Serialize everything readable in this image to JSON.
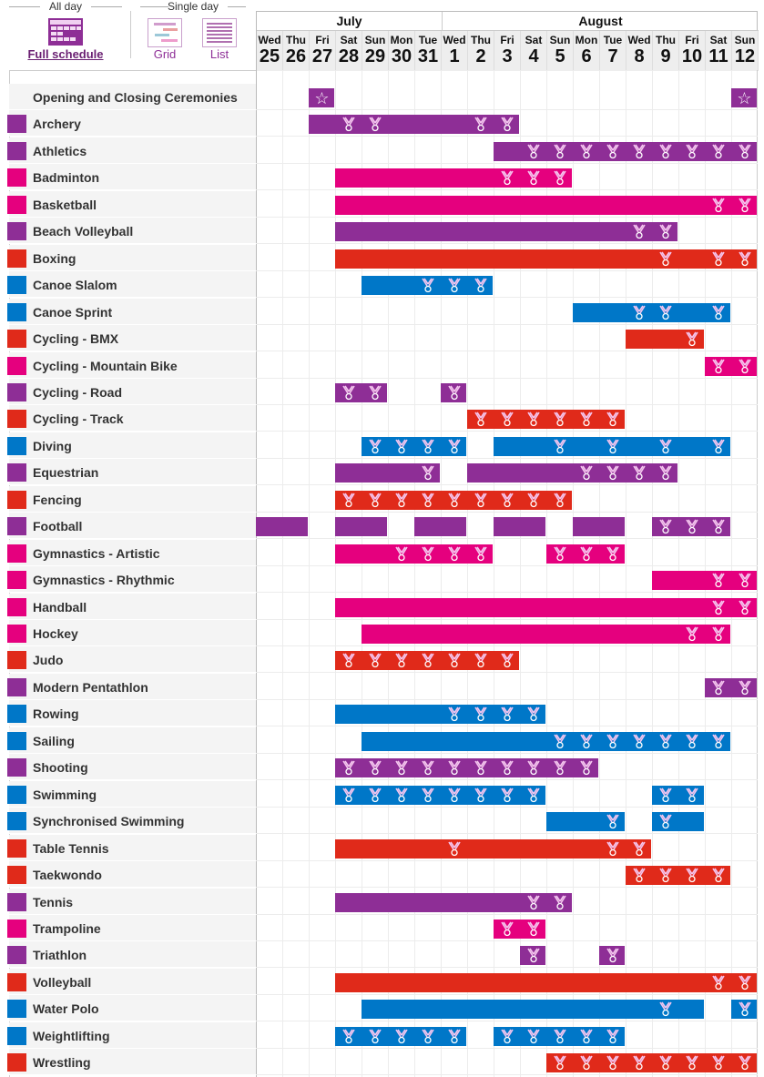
{
  "views": {
    "all_day": "All day",
    "single_day": "Single day",
    "full_schedule": "Full schedule",
    "grid": "Grid",
    "list": "List"
  },
  "months": [
    {
      "name": "July",
      "span": 7
    },
    {
      "name": "August",
      "span": 12
    }
  ],
  "days": [
    {
      "dow": "Wed",
      "num": "25",
      "key": "Jul 25"
    },
    {
      "dow": "Thu",
      "num": "26",
      "key": "Jul 26"
    },
    {
      "dow": "Fri",
      "num": "27",
      "key": "Jul 27"
    },
    {
      "dow": "Sat",
      "num": "28",
      "key": "Jul 28"
    },
    {
      "dow": "Sun",
      "num": "29",
      "key": "Jul 29"
    },
    {
      "dow": "Mon",
      "num": "30",
      "key": "Jul 30"
    },
    {
      "dow": "Tue",
      "num": "31",
      "key": "Jul 31"
    },
    {
      "dow": "Wed",
      "num": "1",
      "key": "Aug 1"
    },
    {
      "dow": "Thu",
      "num": "2",
      "key": "Aug 2"
    },
    {
      "dow": "Fri",
      "num": "3",
      "key": "Aug 3"
    },
    {
      "dow": "Sat",
      "num": "4",
      "key": "Aug 4"
    },
    {
      "dow": "Sun",
      "num": "5",
      "key": "Aug 5"
    },
    {
      "dow": "Mon",
      "num": "6",
      "key": "Aug 6"
    },
    {
      "dow": "Tue",
      "num": "7",
      "key": "Aug 7"
    },
    {
      "dow": "Wed",
      "num": "8",
      "key": "Aug 8"
    },
    {
      "dow": "Thu",
      "num": "9",
      "key": "Aug 9"
    },
    {
      "dow": "Fri",
      "num": "10",
      "key": "Aug 10"
    },
    {
      "dow": "Sat",
      "num": "11",
      "key": "Aug 11"
    },
    {
      "dow": "Sun",
      "num": "12",
      "key": "Aug 12"
    }
  ],
  "colors": {
    "purple": "#8e2e96",
    "pink": "#e5007e",
    "red": "#e02a1a",
    "blue": "#0077c8"
  },
  "icons": {
    "medal": "medal-icon",
    "ceremony": "star-icon"
  },
  "sports": [
    {
      "name": "Opening and Closing Ceremonies",
      "color": "purple",
      "ceremony": true,
      "segs": [
        [
          "Jul 27",
          "Jul 27",
          [
            "Jul 27"
          ]
        ],
        [
          "Aug 12",
          "Aug 12",
          [
            "Aug 12"
          ]
        ]
      ]
    },
    {
      "name": "Archery",
      "color": "purple",
      "segs": [
        [
          "Jul 27",
          "Aug 3",
          [
            "Jul 28",
            "Jul 29",
            "Aug 2",
            "Aug 3"
          ]
        ]
      ]
    },
    {
      "name": "Athletics",
      "color": "purple",
      "segs": [
        [
          "Aug 3",
          "Aug 12",
          [
            "Aug 4",
            "Aug 5",
            "Aug 6",
            "Aug 7",
            "Aug 8",
            "Aug 9",
            "Aug 10",
            "Aug 11",
            "Aug 12"
          ]
        ]
      ]
    },
    {
      "name": "Badminton",
      "color": "pink",
      "segs": [
        [
          "Jul 28",
          "Aug 5",
          [
            "Aug 3",
            "Aug 4",
            "Aug 5"
          ]
        ]
      ]
    },
    {
      "name": "Basketball",
      "color": "pink",
      "segs": [
        [
          "Jul 28",
          "Aug 12",
          [
            "Aug 11",
            "Aug 12"
          ]
        ]
      ]
    },
    {
      "name": "Beach Volleyball",
      "color": "purple",
      "segs": [
        [
          "Jul 28",
          "Aug 9",
          [
            "Aug 8",
            "Aug 9"
          ]
        ]
      ]
    },
    {
      "name": "Boxing",
      "color": "red",
      "segs": [
        [
          "Jul 28",
          "Aug 12",
          [
            "Aug 9",
            "Aug 11",
            "Aug 12"
          ]
        ]
      ]
    },
    {
      "name": "Canoe Slalom",
      "color": "blue",
      "segs": [
        [
          "Jul 29",
          "Aug 2",
          [
            "Jul 31",
            "Aug 1",
            "Aug 2"
          ]
        ]
      ]
    },
    {
      "name": "Canoe Sprint",
      "color": "blue",
      "segs": [
        [
          "Aug 6",
          "Aug 11",
          [
            "Aug 8",
            "Aug 9",
            "Aug 11"
          ]
        ]
      ]
    },
    {
      "name": "Cycling - BMX",
      "color": "red",
      "segs": [
        [
          "Aug 8",
          "Aug 10",
          [
            "Aug 10"
          ]
        ]
      ]
    },
    {
      "name": "Cycling - Mountain Bike",
      "color": "pink",
      "segs": [
        [
          "Aug 11",
          "Aug 12",
          [
            "Aug 11",
            "Aug 12"
          ]
        ]
      ]
    },
    {
      "name": "Cycling - Road",
      "color": "purple",
      "segs": [
        [
          "Jul 28",
          "Jul 29",
          [
            "Jul 28",
            "Jul 29"
          ]
        ],
        [
          "Aug 1",
          "Aug 1",
          [
            "Aug 1"
          ]
        ]
      ]
    },
    {
      "name": "Cycling - Track",
      "color": "red",
      "segs": [
        [
          "Aug 2",
          "Aug 7",
          [
            "Aug 2",
            "Aug 3",
            "Aug 4",
            "Aug 5",
            "Aug 6",
            "Aug 7"
          ]
        ]
      ]
    },
    {
      "name": "Diving",
      "color": "blue",
      "segs": [
        [
          "Jul 29",
          "Aug 1",
          [
            "Jul 29",
            "Jul 30",
            "Jul 31",
            "Aug 1"
          ]
        ],
        [
          "Aug 3",
          "Aug 11",
          [
            "Aug 5",
            "Aug 7",
            "Aug 9",
            "Aug 11"
          ]
        ]
      ]
    },
    {
      "name": "Equestrian",
      "color": "purple",
      "segs": [
        [
          "Jul 28",
          "Jul 31",
          [
            "Jul 31"
          ]
        ],
        [
          "Aug 2",
          "Aug 9",
          [
            "Aug 6",
            "Aug 7",
            "Aug 8",
            "Aug 9"
          ]
        ]
      ]
    },
    {
      "name": "Fencing",
      "color": "red",
      "segs": [
        [
          "Jul 28",
          "Aug 5",
          [
            "Jul 28",
            "Jul 29",
            "Jul 30",
            "Jul 31",
            "Aug 1",
            "Aug 2",
            "Aug 3",
            "Aug 4",
            "Aug 5"
          ]
        ]
      ]
    },
    {
      "name": "Football",
      "color": "purple",
      "segs": [
        [
          "Jul 25",
          "Jul 26",
          []
        ],
        [
          "Jul 28",
          "Jul 29",
          []
        ],
        [
          "Jul 31",
          "Aug 1",
          []
        ],
        [
          "Aug 3",
          "Aug 4",
          []
        ],
        [
          "Aug 6",
          "Aug 7",
          []
        ],
        [
          "Aug 9",
          "Aug 11",
          [
            "Aug 9",
            "Aug 10",
            "Aug 11"
          ]
        ]
      ]
    },
    {
      "name": "Gymnastics - Artistic",
      "color": "pink",
      "segs": [
        [
          "Jul 28",
          "Aug 2",
          [
            "Jul 30",
            "Jul 31",
            "Aug 1",
            "Aug 2"
          ]
        ],
        [
          "Aug 5",
          "Aug 7",
          [
            "Aug 5",
            "Aug 6",
            "Aug 7"
          ]
        ]
      ]
    },
    {
      "name": "Gymnastics - Rhythmic",
      "color": "pink",
      "segs": [
        [
          "Aug 9",
          "Aug 12",
          [
            "Aug 11",
            "Aug 12"
          ]
        ]
      ]
    },
    {
      "name": "Handball",
      "color": "pink",
      "segs": [
        [
          "Jul 28",
          "Aug 12",
          [
            "Aug 11",
            "Aug 12"
          ]
        ]
      ]
    },
    {
      "name": "Hockey",
      "color": "pink",
      "segs": [
        [
          "Jul 29",
          "Aug 11",
          [
            "Aug 10",
            "Aug 11"
          ]
        ]
      ]
    },
    {
      "name": "Judo",
      "color": "red",
      "segs": [
        [
          "Jul 28",
          "Aug 3",
          [
            "Jul 28",
            "Jul 29",
            "Jul 30",
            "Jul 31",
            "Aug 1",
            "Aug 2",
            "Aug 3"
          ]
        ]
      ]
    },
    {
      "name": "Modern Pentathlon",
      "color": "purple",
      "segs": [
        [
          "Aug 11",
          "Aug 12",
          [
            "Aug 11",
            "Aug 12"
          ]
        ]
      ]
    },
    {
      "name": "Rowing",
      "color": "blue",
      "segs": [
        [
          "Jul 28",
          "Aug 4",
          [
            "Aug 1",
            "Aug 2",
            "Aug 3",
            "Aug 4"
          ]
        ]
      ]
    },
    {
      "name": "Sailing",
      "color": "blue",
      "segs": [
        [
          "Jul 29",
          "Aug 11",
          [
            "Aug 5",
            "Aug 6",
            "Aug 7",
            "Aug 8",
            "Aug 9",
            "Aug 10",
            "Aug 11"
          ]
        ]
      ]
    },
    {
      "name": "Shooting",
      "color": "purple",
      "segs": [
        [
          "Jul 28",
          "Aug 6",
          [
            "Jul 28",
            "Jul 29",
            "Jul 30",
            "Jul 31",
            "Aug 1",
            "Aug 2",
            "Aug 3",
            "Aug 4",
            "Aug 5",
            "Aug 6"
          ]
        ]
      ]
    },
    {
      "name": "Swimming",
      "color": "blue",
      "segs": [
        [
          "Jul 28",
          "Aug 4",
          [
            "Jul 28",
            "Jul 29",
            "Jul 30",
            "Jul 31",
            "Aug 1",
            "Aug 2",
            "Aug 3",
            "Aug 4"
          ]
        ],
        [
          "Aug 9",
          "Aug 10",
          [
            "Aug 9",
            "Aug 10"
          ]
        ]
      ]
    },
    {
      "name": "Synchronised Swimming",
      "color": "blue",
      "segs": [
        [
          "Aug 5",
          "Aug 7",
          [
            "Aug 7"
          ]
        ],
        [
          "Aug 9",
          "Aug 10",
          [
            "Aug 9"
          ]
        ]
      ]
    },
    {
      "name": "Table Tennis",
      "color": "red",
      "segs": [
        [
          "Jul 28",
          "Aug 8",
          [
            "Aug 1",
            "Aug 7",
            "Aug 8"
          ]
        ]
      ]
    },
    {
      "name": "Taekwondo",
      "color": "red",
      "segs": [
        [
          "Aug 8",
          "Aug 11",
          [
            "Aug 8",
            "Aug 9",
            "Aug 10",
            "Aug 11"
          ]
        ]
      ]
    },
    {
      "name": "Tennis",
      "color": "purple",
      "segs": [
        [
          "Jul 28",
          "Aug 5",
          [
            "Aug 4",
            "Aug 5"
          ]
        ]
      ]
    },
    {
      "name": "Trampoline",
      "color": "pink",
      "segs": [
        [
          "Aug 3",
          "Aug 4",
          [
            "Aug 3",
            "Aug 4"
          ]
        ]
      ]
    },
    {
      "name": "Triathlon",
      "color": "purple",
      "segs": [
        [
          "Aug 4",
          "Aug 4",
          [
            "Aug 4"
          ]
        ],
        [
          "Aug 7",
          "Aug 7",
          [
            "Aug 7"
          ]
        ]
      ]
    },
    {
      "name": "Volleyball",
      "color": "red",
      "segs": [
        [
          "Jul 28",
          "Aug 12",
          [
            "Aug 11",
            "Aug 12"
          ]
        ]
      ]
    },
    {
      "name": "Water Polo",
      "color": "blue",
      "segs": [
        [
          "Jul 29",
          "Aug 10",
          [
            "Aug 9"
          ]
        ],
        [
          "Aug 12",
          "Aug 12",
          [
            "Aug 12"
          ]
        ]
      ]
    },
    {
      "name": "Weightlifting",
      "color": "blue",
      "segs": [
        [
          "Jul 28",
          "Aug 1",
          [
            "Jul 28",
            "Jul 29",
            "Jul 30",
            "Jul 31",
            "Aug 1"
          ]
        ],
        [
          "Aug 3",
          "Aug 7",
          [
            "Aug 3",
            "Aug 4",
            "Aug 5",
            "Aug 6",
            "Aug 7"
          ]
        ]
      ]
    },
    {
      "name": "Wrestling",
      "color": "red",
      "segs": [
        [
          "Aug 5",
          "Aug 12",
          [
            "Aug 5",
            "Aug 6",
            "Aug 7",
            "Aug 8",
            "Aug 9",
            "Aug 10",
            "Aug 11",
            "Aug 12"
          ]
        ]
      ]
    }
  ]
}
